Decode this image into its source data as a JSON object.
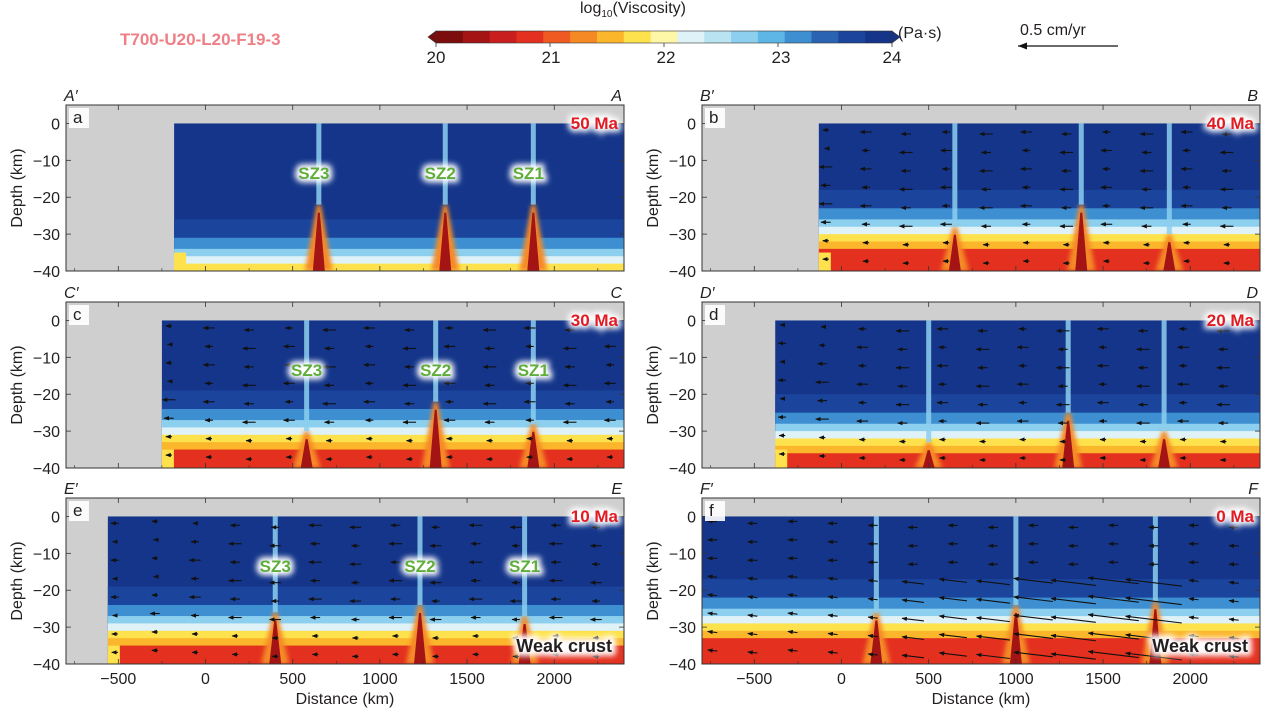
{
  "figure": {
    "model_title": "T700-U20-L20-F19-3",
    "colorbar": {
      "title": "log10(Viscosity)",
      "title_base": "log",
      "title_sub": "10",
      "title_rest": "(Viscosity)",
      "unit": "(Pa·s)",
      "ticks": [
        "20",
        "21",
        "22",
        "23",
        "24"
      ],
      "range": [
        20,
        24
      ],
      "colors": [
        "#7d0c0c",
        "#a51414",
        "#c81e1e",
        "#e4311f",
        "#ef5a23",
        "#f58a25",
        "#fbb62b",
        "#fde24d",
        "#fff7a8",
        "#dff2f7",
        "#b9e3f1",
        "#8ccfee",
        "#5eb6e6",
        "#3d8fd1",
        "#2b63b3",
        "#1b459d",
        "#14358a"
      ],
      "extend": "both"
    },
    "scale_arrow": {
      "label": "0.5 cm/yr",
      "value_cm_per_yr": 0.5
    }
  },
  "chart_data": [
    {
      "type": "heatmap",
      "panel": "a",
      "age_label": "50 Ma",
      "profile_start": "A′",
      "profile_end": "A",
      "xlabel": "Distance (km)",
      "ylabel": "Depth (km)",
      "xlim": [
        -800,
        2400
      ],
      "ylim": [
        -40,
        5
      ],
      "xticks": [
        "-500",
        "0",
        "500",
        "1000",
        "1500",
        "2000"
      ],
      "yticks": [
        "0",
        "-10",
        "-20",
        "-30",
        "-40"
      ],
      "show_xticklabels": false,
      "domain_left_km": -180,
      "surface_top_km": 0,
      "weak_zones": [
        {
          "label": "SZ3",
          "x_km": 650,
          "depth_top_km": -22
        },
        {
          "label": "SZ2",
          "x_km": 1375,
          "depth_top_km": -22
        },
        {
          "label": "SZ1",
          "x_km": 1880,
          "depth_top_km": -22
        }
      ],
      "ductile_depth_km": -38,
      "velocities": "none",
      "annotation": ""
    },
    {
      "type": "heatmap",
      "panel": "b",
      "age_label": "40 Ma",
      "profile_start": "B′",
      "profile_end": "B",
      "xlabel": "Distance (km)",
      "ylabel": "Depth (km)",
      "xlim": [
        -800,
        2400
      ],
      "ylim": [
        -40,
        5
      ],
      "xticks": [
        "-500",
        "0",
        "500",
        "1000",
        "1500",
        "2000"
      ],
      "yticks": [
        "0",
        "-10",
        "-20",
        "-30",
        "-40"
      ],
      "show_xticklabels": false,
      "domain_left_km": -130,
      "surface_top_km": 0,
      "weak_zones": [
        {
          "label": "",
          "x_km": 650,
          "depth_top_km": -28
        },
        {
          "label": "",
          "x_km": 1375,
          "depth_top_km": -22
        },
        {
          "label": "",
          "x_km": 1880,
          "depth_top_km": -30
        }
      ],
      "ductile_depth_km": -30,
      "velocities": "westward",
      "annotation": ""
    },
    {
      "type": "heatmap",
      "panel": "c",
      "age_label": "30 Ma",
      "profile_start": "C′",
      "profile_end": "C",
      "xlabel": "Distance (km)",
      "ylabel": "Depth (km)",
      "xlim": [
        -800,
        2400
      ],
      "ylim": [
        -40,
        5
      ],
      "xticks": [
        "-500",
        "0",
        "500",
        "1000",
        "1500",
        "2000"
      ],
      "yticks": [
        "0",
        "-10",
        "-20",
        "-30",
        "-40"
      ],
      "show_xticklabels": false,
      "domain_left_km": -250,
      "surface_top_km": 0,
      "weak_zones": [
        {
          "label": "SZ3",
          "x_km": 580,
          "depth_top_km": -30
        },
        {
          "label": "SZ2",
          "x_km": 1320,
          "depth_top_km": -22
        },
        {
          "label": "SZ1",
          "x_km": 1880,
          "depth_top_km": -28
        }
      ],
      "ductile_depth_km": -31,
      "velocities": "westward",
      "annotation": ""
    },
    {
      "type": "heatmap",
      "panel": "d",
      "age_label": "20 Ma",
      "profile_start": "D′",
      "profile_end": "D",
      "xlabel": "Distance (km)",
      "ylabel": "Depth (km)",
      "xlim": [
        -800,
        2400
      ],
      "ylim": [
        -40,
        5
      ],
      "xticks": [
        "-500",
        "0",
        "500",
        "1000",
        "1500",
        "2000"
      ],
      "yticks": [
        "0",
        "-10",
        "-20",
        "-30",
        "-40"
      ],
      "show_xticklabels": false,
      "domain_left_km": -380,
      "surface_top_km": 0,
      "weak_zones": [
        {
          "label": "",
          "x_km": 500,
          "depth_top_km": -33
        },
        {
          "label": "",
          "x_km": 1300,
          "depth_top_km": -25
        },
        {
          "label": "",
          "x_km": 1850,
          "depth_top_km": -30
        }
      ],
      "ductile_depth_km": -32,
      "velocities": "westward",
      "annotation": ""
    },
    {
      "type": "heatmap",
      "panel": "e",
      "age_label": "10 Ma",
      "profile_start": "E′",
      "profile_end": "E",
      "xlabel": "Distance (km)",
      "ylabel": "Depth (km)",
      "xlim": [
        -800,
        2400
      ],
      "ylim": [
        -40,
        5
      ],
      "xticks": [
        "-500",
        "0",
        "500",
        "1000",
        "1500",
        "2000"
      ],
      "yticks": [
        "0",
        "-10",
        "-20",
        "-30",
        "-40"
      ],
      "show_xticklabels": true,
      "domain_left_km": -560,
      "surface_top_km": 0,
      "weak_zones": [
        {
          "label": "SZ3",
          "x_km": 400,
          "depth_top_km": -26
        },
        {
          "label": "SZ2",
          "x_km": 1230,
          "depth_top_km": -24
        },
        {
          "label": "SZ1",
          "x_km": 1830,
          "depth_top_km": -27
        }
      ],
      "ductile_depth_km": -31,
      "velocities": "westward",
      "annotation": "Weak crust"
    },
    {
      "type": "heatmap",
      "panel": "f",
      "age_label": "0 Ma",
      "profile_start": "F′",
      "profile_end": "F",
      "xlabel": "Distance (km)",
      "ylabel": "Depth (km)",
      "xlim": [
        -800,
        2400
      ],
      "ylim": [
        -40,
        5
      ],
      "xticks": [
        "-500",
        "0",
        "500",
        "1000",
        "1500",
        "2000"
      ],
      "yticks": [
        "0",
        "-10",
        "-20",
        "-30",
        "-40"
      ],
      "show_xticklabels": true,
      "domain_left_km": -800,
      "surface_top_km": 0,
      "weak_zones": [
        {
          "label": "",
          "x_km": 200,
          "depth_top_km": -26
        },
        {
          "label": "",
          "x_km": 1000,
          "depth_top_km": -24
        },
        {
          "label": "",
          "x_km": 1800,
          "depth_top_km": -23
        }
      ],
      "ductile_depth_km": -29,
      "velocities": "westward-strong",
      "annotation": "Weak crust"
    }
  ]
}
